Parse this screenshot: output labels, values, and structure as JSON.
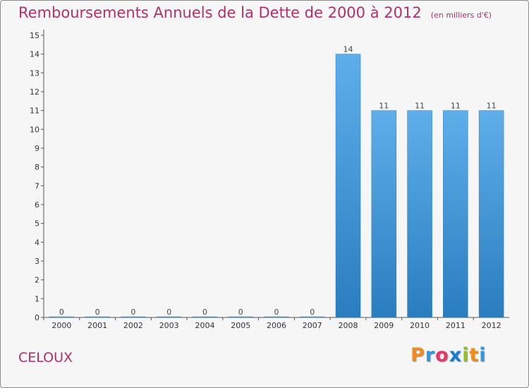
{
  "header": {
    "title": "Remboursements Annuels de la Dette de 2000 à 2012",
    "unit": "(en milliers d'€)"
  },
  "footer": {
    "commune": "CELOUX",
    "brand_letters": [
      "P",
      "r",
      "o",
      "x",
      "i",
      "t",
      "i"
    ],
    "brand_colors": [
      "#f28c1e",
      "#2e9be0",
      "#e8356b",
      "#1b7fd1",
      "#93c01f",
      "#f28c1e",
      "#2e9be0"
    ]
  },
  "chart_data": {
    "type": "bar",
    "categories": [
      "2000",
      "2001",
      "2002",
      "2003",
      "2004",
      "2005",
      "2006",
      "2007",
      "2008",
      "2009",
      "2010",
      "2011",
      "2012"
    ],
    "values": [
      0,
      0,
      0,
      0,
      0,
      0,
      0,
      0,
      14,
      11,
      11,
      11,
      11
    ],
    "data_labels": [
      "0",
      "0",
      "0",
      "0",
      "0",
      "0",
      "0",
      "0",
      "14",
      "11",
      "11",
      "11",
      "11"
    ],
    "yticks": [
      0,
      1,
      2,
      3,
      4,
      5,
      6,
      7,
      8,
      9,
      10,
      11,
      12,
      13,
      14,
      15
    ],
    "ylim": [
      0,
      15
    ],
    "bar_color_top": "#5eaeea",
    "bar_color_bottom": "#2a7dbf",
    "title": "Remboursements Annuels de la Dette de 2000 à 2012",
    "xlabel": "",
    "ylabel": ""
  }
}
